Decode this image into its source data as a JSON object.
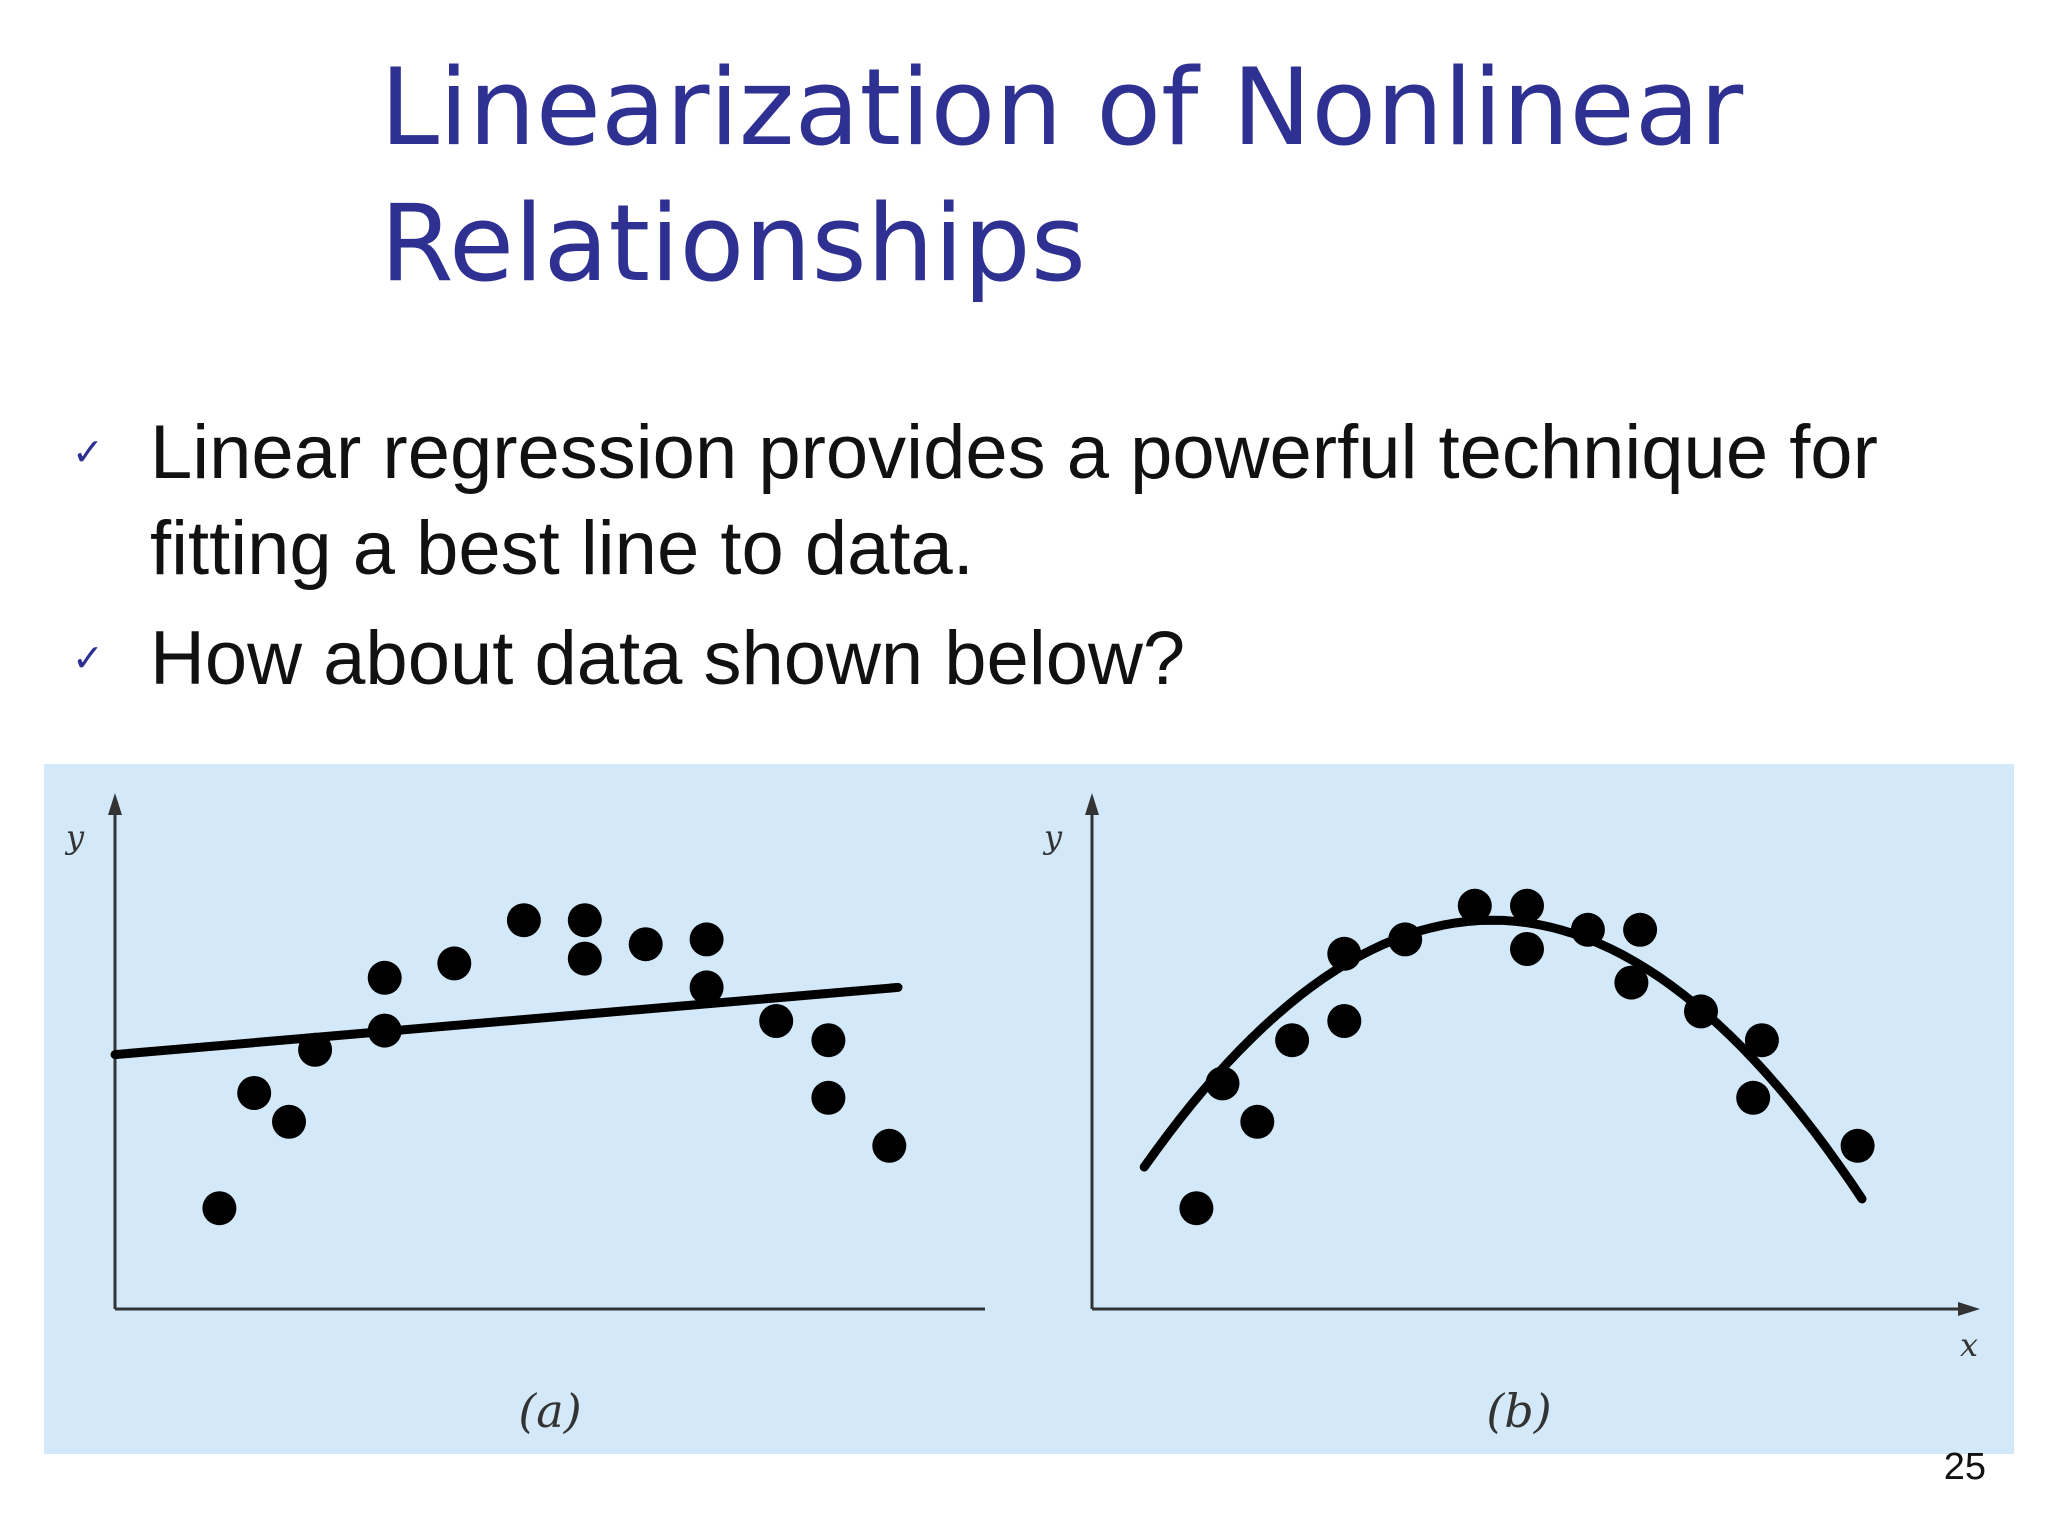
{
  "slide": {
    "title_line1": "Linearization of Nonlinear",
    "title_line2": "Relationships",
    "bullets": [
      "Linear regression provides a powerful technique for fitting a best line to data.",
      "How about data shown below?"
    ],
    "bullet_icon": "check-mark-icon",
    "page_number": "25"
  },
  "colors": {
    "title": "#2e3192",
    "text": "#111111",
    "figure_background": "#d3e8f8",
    "marks": "#000000"
  },
  "figure": {
    "panel_a": {
      "caption": "(a)",
      "y_label": "y"
    },
    "panel_b": {
      "caption": "(b)",
      "y_label": "y",
      "x_label": "x"
    }
  },
  "chart_data": [
    {
      "type": "scatter",
      "caption": "(a)",
      "ylabel": "y",
      "xlabel": "",
      "xlim": [
        0,
        10
      ],
      "ylim": [
        0,
        10
      ],
      "grid": false,
      "points": [
        {
          "x": 1.2,
          "y": 2.1
        },
        {
          "x": 1.6,
          "y": 4.5
        },
        {
          "x": 2.0,
          "y": 3.9
        },
        {
          "x": 2.3,
          "y": 5.4
        },
        {
          "x": 3.1,
          "y": 6.9
        },
        {
          "x": 3.1,
          "y": 5.8
        },
        {
          "x": 3.9,
          "y": 7.2
        },
        {
          "x": 4.7,
          "y": 8.1
        },
        {
          "x": 5.4,
          "y": 8.1
        },
        {
          "x": 5.4,
          "y": 7.3
        },
        {
          "x": 6.1,
          "y": 7.6
        },
        {
          "x": 6.8,
          "y": 7.7
        },
        {
          "x": 6.8,
          "y": 6.7
        },
        {
          "x": 7.6,
          "y": 6.0
        },
        {
          "x": 8.2,
          "y": 5.6
        },
        {
          "x": 8.2,
          "y": 4.4
        },
        {
          "x": 8.9,
          "y": 3.4
        }
      ],
      "fit": {
        "kind": "linear",
        "x0": 0,
        "y0": 5.3,
        "x1": 9.0,
        "y1": 6.7
      }
    },
    {
      "type": "scatter",
      "caption": "(b)",
      "ylabel": "y",
      "xlabel": "x",
      "xlim": [
        0,
        10
      ],
      "ylim": [
        0,
        10
      ],
      "grid": false,
      "points": [
        {
          "x": 1.2,
          "y": 2.1
        },
        {
          "x": 1.5,
          "y": 4.7
        },
        {
          "x": 1.9,
          "y": 3.9
        },
        {
          "x": 2.3,
          "y": 5.6
        },
        {
          "x": 2.9,
          "y": 7.4
        },
        {
          "x": 2.9,
          "y": 6.0
        },
        {
          "x": 3.6,
          "y": 7.7
        },
        {
          "x": 4.4,
          "y": 8.4
        },
        {
          "x": 5.0,
          "y": 8.4
        },
        {
          "x": 5.0,
          "y": 7.5
        },
        {
          "x": 5.7,
          "y": 7.9
        },
        {
          "x": 6.3,
          "y": 7.9
        },
        {
          "x": 6.2,
          "y": 6.8
        },
        {
          "x": 7.0,
          "y": 6.2
        },
        {
          "x": 7.7,
          "y": 5.6
        },
        {
          "x": 7.6,
          "y": 4.4
        },
        {
          "x": 8.8,
          "y": 3.4
        }
      ],
      "fit": {
        "kind": "quadratic",
        "vertex_x": 4.6,
        "vertex_y": 8.1,
        "a": -0.3214,
        "x_start": 0.6,
        "x_end": 8.85
      }
    }
  ]
}
